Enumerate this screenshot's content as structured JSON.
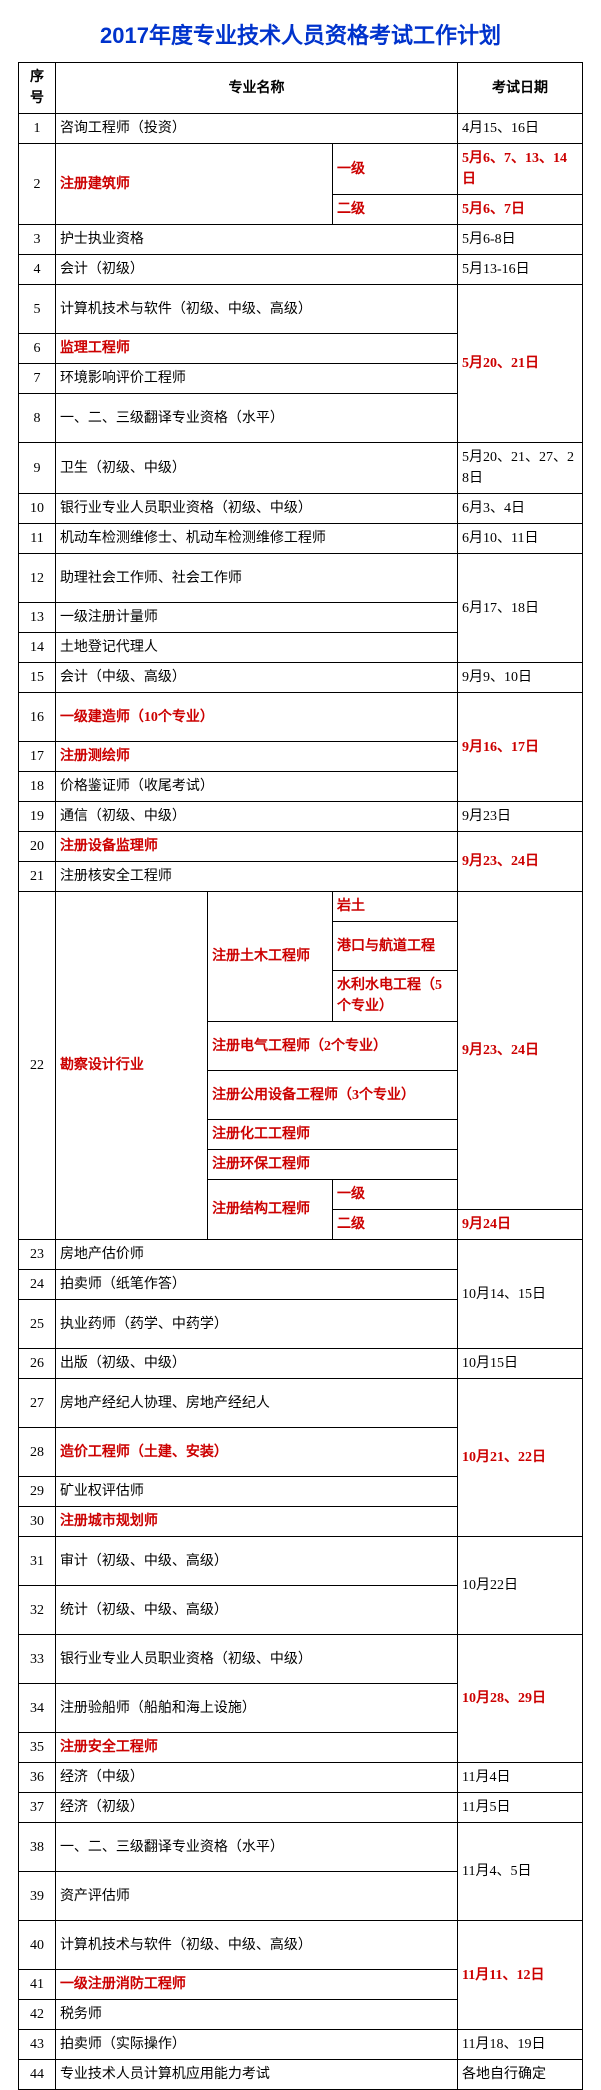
{
  "title": "2017年度专业技术人员资格考试工作计划",
  "headers": {
    "seq": "序号",
    "name": "专业名称",
    "date": "考试日期"
  },
  "r1": {
    "seq": "1",
    "name": "咨询工程师（投资）",
    "date": "4月15、16日"
  },
  "r2": {
    "seq": "2",
    "name": "注册建筑师",
    "lv1": "一级",
    "lv2": "二级",
    "d1": "5月6、7、13、14日",
    "d2": "5月6、7日"
  },
  "r3": {
    "seq": "3",
    "name": "护士执业资格",
    "date": "5月6-8日"
  },
  "r4": {
    "seq": "4",
    "name": "会计（初级）",
    "date": "5月13-16日"
  },
  "r5": {
    "seq": "5",
    "name": "计算机技术与软件（初级、中级、高级）"
  },
  "r6": {
    "seq": "6",
    "name": "监理工程师"
  },
  "r7": {
    "seq": "7",
    "name": "环境影响评价工程师"
  },
  "r8": {
    "seq": "8",
    "name": "一、二、三级翻译专业资格（水平）"
  },
  "d5_8": "5月20、21日",
  "r9": {
    "seq": "9",
    "name": "卫生（初级、中级）",
    "date": "5月20、21、27、28日"
  },
  "r10": {
    "seq": "10",
    "name": "银行业专业人员职业资格（初级、中级）",
    "date": "6月3、4日"
  },
  "r11": {
    "seq": "11",
    "name": "机动车检测维修士、机动车检测维修工程师",
    "date": "6月10、11日"
  },
  "r12": {
    "seq": "12",
    "name": "助理社会工作师、社会工作师"
  },
  "r13": {
    "seq": "13",
    "name": "一级注册计量师"
  },
  "r14": {
    "seq": "14",
    "name": "土地登记代理人"
  },
  "d12_14": "6月17、18日",
  "r15": {
    "seq": "15",
    "name": "会计（中级、高级）",
    "date": "9月9、10日"
  },
  "r16": {
    "seq": "16",
    "name": "一级建造师（10个专业）"
  },
  "r17": {
    "seq": "17",
    "name": "注册测绘师"
  },
  "r18": {
    "seq": "18",
    "name": "价格鉴证师（收尾考试）"
  },
  "d16_18": "9月16、17日",
  "r19": {
    "seq": "19",
    "name": "通信（初级、中级）",
    "date": "9月23日"
  },
  "r20": {
    "seq": "20",
    "name": "注册设备监理师"
  },
  "r21": {
    "seq": "21",
    "name": "注册核安全工程师"
  },
  "d20_21": "9月23、24日",
  "r22": {
    "seq": "22",
    "name": "勘察设计行业",
    "civil": "注册土木工程师",
    "civil_a": "岩土",
    "civil_b": "港口与航道工程",
    "civil_c": "水利水电工程（5个专业）",
    "elec": "注册电气工程师（2个专业）",
    "util": "注册公用设备工程师（3个专业）",
    "chem": "注册化工工程师",
    "env": "注册环保工程师",
    "struct": "注册结构工程师",
    "s1": "一级",
    "s2": "二级",
    "d_main": "9月23、24日",
    "d_s2": "9月24日"
  },
  "r23": {
    "seq": "23",
    "name": "房地产估价师"
  },
  "r24": {
    "seq": "24",
    "name": "拍卖师（纸笔作答）"
  },
  "r25": {
    "seq": "25",
    "name": "执业药师（药学、中药学）"
  },
  "d23_25": "10月14、15日",
  "r26": {
    "seq": "26",
    "name": "出版（初级、中级）",
    "date": "10月15日"
  },
  "r27": {
    "seq": "27",
    "name": "房地产经纪人协理、房地产经纪人"
  },
  "r28": {
    "seq": "28",
    "name": "造价工程师（土建、安装）"
  },
  "r29": {
    "seq": "29",
    "name": "矿业权评估师"
  },
  "r30": {
    "seq": "30",
    "name": "注册城市规划师"
  },
  "d27_30": "10月21、22日",
  "r31": {
    "seq": "31",
    "name": "审计（初级、中级、高级）"
  },
  "r32": {
    "seq": "32",
    "name": "统计（初级、中级、高级）"
  },
  "d31_32": "10月22日",
  "r33": {
    "seq": "33",
    "name": "银行业专业人员职业资格（初级、中级）"
  },
  "r34": {
    "seq": "34",
    "name": "注册验船师（船舶和海上设施）"
  },
  "r35": {
    "seq": "35",
    "name": "注册安全工程师"
  },
  "d33_35": "10月28、29日",
  "r36": {
    "seq": "36",
    "name": "经济（中级）",
    "date": "11月4日"
  },
  "r37": {
    "seq": "37",
    "name": "经济（初级）",
    "date": "11月5日"
  },
  "r38": {
    "seq": "38",
    "name": "一、二、三级翻译专业资格（水平）"
  },
  "r39": {
    "seq": "39",
    "name": "资产评估师"
  },
  "d38_39": "11月4、5日",
  "r40": {
    "seq": "40",
    "name": "计算机技术与软件（初级、中级、高级）"
  },
  "r41": {
    "seq": "41",
    "name": "一级注册消防工程师"
  },
  "r42": {
    "seq": "42",
    "name": "税务师"
  },
  "d40_42": "11月11、12日",
  "r43": {
    "seq": "43",
    "name": "拍卖师（实际操作）",
    "date": "11月18、19日"
  },
  "r44": {
    "seq": "44",
    "name": "专业技术人员计算机应用能力考试",
    "date": "各地自行确定"
  }
}
